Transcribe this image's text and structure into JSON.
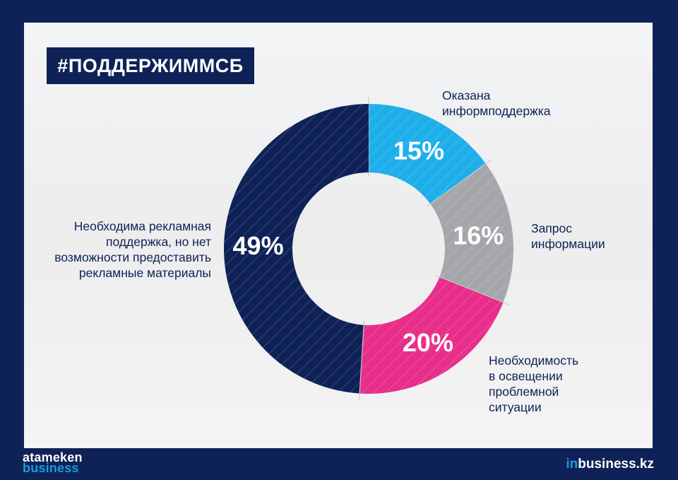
{
  "header": {
    "hashtag": "#ПОДДЕРЖИММСБ"
  },
  "chart_data": {
    "type": "pie",
    "title": "",
    "slices": [
      {
        "label": "Оказана информподдержка",
        "label_lines": [
          "Оказана",
          "информподдержка"
        ],
        "value": 15,
        "value_label": "15%",
        "color": "#1eaeea"
      },
      {
        "label": "Запрос информации",
        "label_lines": [
          "Запрос",
          "информации"
        ],
        "value": 16,
        "value_label": "16%",
        "color": "#a4a6aa"
      },
      {
        "label": "Необходимость в освещении проблемной ситуации",
        "label_lines": [
          "Необходимость",
          "в освещении",
          "проблемной",
          "ситуации"
        ],
        "value": 20,
        "value_label": "20%",
        "color": "#e82e8a"
      },
      {
        "label": "Необходима рекламная поддержка, но нет возможности предоставить рекламные материалы",
        "label_lines": [
          "Необходима рекламная",
          "поддержка, но нет",
          "возможности предоставить",
          "рекламные материалы"
        ],
        "value": 49,
        "value_label": "49%",
        "color": "#0f2257"
      }
    ]
  },
  "footer": {
    "left_logo_line1": "atameken",
    "left_logo_line2": "business",
    "right_logo_prefix": "in",
    "right_logo_suffix": "business.kz"
  }
}
